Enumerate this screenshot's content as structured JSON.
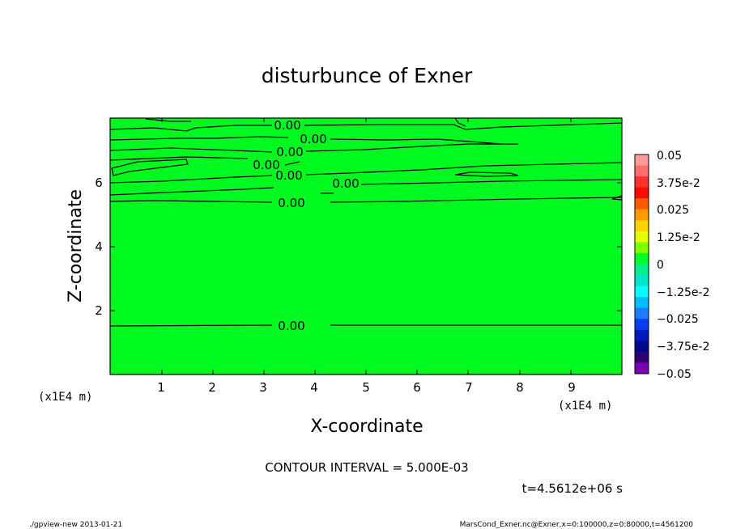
{
  "chart_data": {
    "type": "heatmap",
    "title": "disturbunce of Exner",
    "xlabel": "X-coordinate",
    "ylabel": "Z-coordinate",
    "x_unit": "(x1E4 m)",
    "y_unit": "(x1E4 m)",
    "xlim": [
      0,
      10
    ],
    "ylim": [
      0,
      8
    ],
    "x_ticks": [
      1,
      2,
      3,
      4,
      5,
      6,
      7,
      8,
      9
    ],
    "y_ticks": [
      2,
      4,
      6
    ],
    "contour_label": "0.00",
    "contour_interval_text": "CONTOUR INTERVAL = 5.000E-03",
    "time_text": "t=4.5612e+06 s",
    "colorbar": {
      "labels": [
        "0.05",
        "3.75e-2",
        "0.025",
        "1.25e-2",
        "0",
        "−1.25e-2",
        "−0.025",
        "−3.75e-2",
        "−0.05"
      ],
      "colors": [
        "#ff9a9a",
        "#ff6d6d",
        "#ff3030",
        "#ff0a00",
        "#ff5a00",
        "#ff9a00",
        "#ffd200",
        "#e6ff00",
        "#7cff00",
        "#00ff2a",
        "#00f08c",
        "#00e6c8",
        "#00ffff",
        "#00bfff",
        "#1e7bff",
        "#0a3cf0",
        "#0018c0",
        "#000890",
        "#300070",
        "#7a00b4"
      ],
      "min": -0.05,
      "max": 0.05
    },
    "fill_color": "#00f91e",
    "grid": false
  },
  "footer": {
    "left": "./gpview-new  2013-01-21",
    "right": "MarsCond_Exner.nc@Exner,x=0:100000,z=0:80000,t=4561200"
  }
}
